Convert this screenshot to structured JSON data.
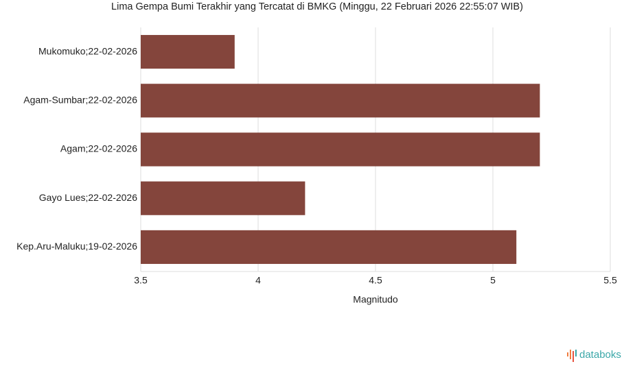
{
  "chart_data": {
    "type": "hbar",
    "title": "Lima Gempa Bumi Terakhir yang Tercatat di BMKG (Minggu, 22 Februari 2026 22:55:07 WIB)",
    "categories": [
      "Mukomuko;22-02-2026",
      "Agam-Sumbar;22-02-2026",
      "Agam;22-02-2026",
      "Gayo Lues;22-02-2026",
      "Kep.Aru-Maluku;19-02-2026"
    ],
    "values": [
      3.9,
      5.2,
      5.2,
      4.2,
      5.1
    ],
    "color": "#84453c",
    "xlabel": "Magnitudo",
    "xlim": [
      3.5,
      5.5
    ],
    "xticks": [
      3.5,
      4,
      4.5,
      5,
      5.5
    ],
    "grid": true
  },
  "brand": "databoks"
}
